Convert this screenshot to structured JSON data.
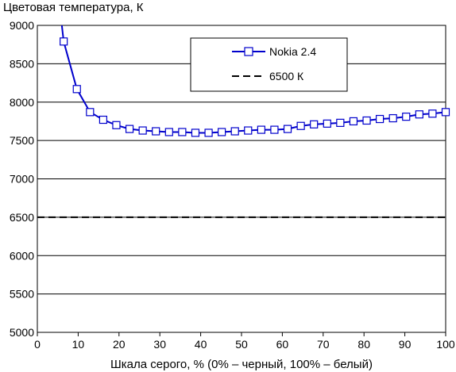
{
  "chart_data": {
    "type": "line",
    "ylabel": "Цветовая температура, К",
    "xlabel": "Шкала серого, % (0% – черный, 100% – белый)",
    "xlim": [
      0,
      100
    ],
    "ylim": [
      5000,
      9000
    ],
    "xticks": [
      0,
      10,
      20,
      30,
      40,
      50,
      60,
      70,
      80,
      90,
      100
    ],
    "yticks": [
      5000,
      5500,
      6000,
      6500,
      7000,
      7500,
      8000,
      8500,
      9000
    ],
    "grid": "horizontal",
    "legend_position": "top-right",
    "series": [
      {
        "name": "Nokia 2.4",
        "color": "#0000cc",
        "marker": "open-square",
        "x": [
          6.45,
          9.68,
          12.9,
          16.13,
          19.35,
          22.58,
          25.81,
          29.03,
          32.26,
          35.48,
          38.71,
          41.94,
          45.16,
          48.39,
          51.61,
          54.84,
          58.06,
          61.29,
          64.52,
          67.74,
          70.97,
          74.19,
          77.42,
          80.65,
          83.87,
          87.1,
          90.32,
          93.55,
          96.77,
          100
        ],
        "y": [
          8790,
          8170,
          7870,
          7770,
          7700,
          7650,
          7630,
          7620,
          7610,
          7610,
          7600,
          7600,
          7610,
          7620,
          7630,
          7640,
          7640,
          7650,
          7690,
          7710,
          7720,
          7730,
          7750,
          7760,
          7780,
          7790,
          7810,
          7840,
          7850,
          7870
        ],
        "leading_line_x": [
          6.0,
          6.45
        ],
        "leading_line_y": [
          9000,
          8790
        ]
      },
      {
        "name": "6500 К",
        "color": "#000000",
        "style": "dashed",
        "x": [
          0,
          100
        ],
        "y": [
          6500,
          6500
        ]
      }
    ]
  }
}
